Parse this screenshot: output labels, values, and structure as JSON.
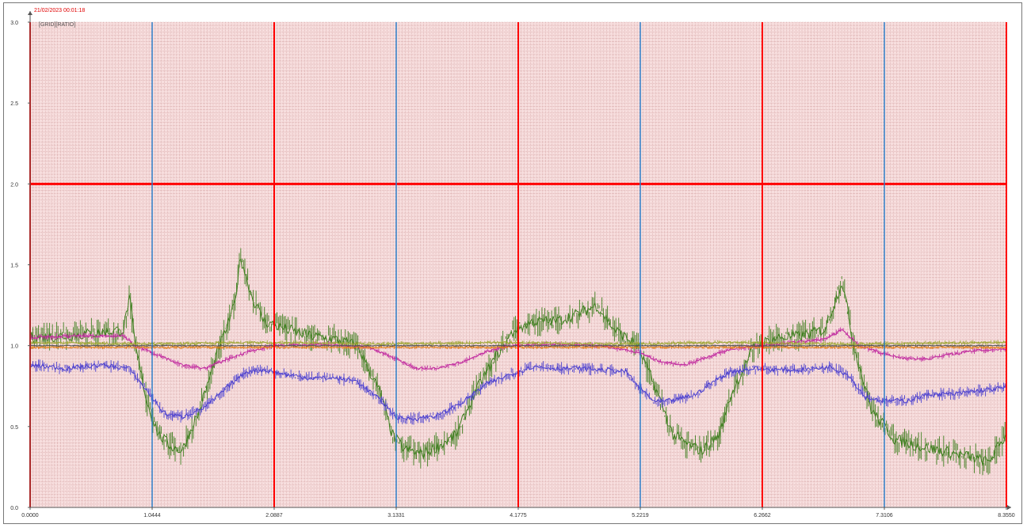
{
  "window": {
    "timestamp": "21/02/2023 00:01:18",
    "subtitle": "[GRID][RATIO]"
  },
  "chart_data": {
    "type": "line",
    "title": "",
    "xlabel": "",
    "ylabel": "",
    "xlim": [
      0,
      8.355
    ],
    "ylim": [
      0,
      3.0
    ],
    "grid": true,
    "legend": "none",
    "x_ticks": [
      "0.0000",
      "1.0444",
      "2.0887",
      "3.1331",
      "4.1775",
      "5.2219",
      "6.2662",
      "7.3106",
      "8.3550"
    ],
    "y_ticks": [
      "0.0",
      "0.5",
      "1.0",
      "1.5",
      "2.0",
      "2.5",
      "3.0"
    ],
    "reference_lines": {
      "horizontal_limit": 2.0,
      "vertical_red": [
        0,
        2.0887,
        4.1775,
        6.2662,
        8.355
      ],
      "vertical_blue": [
        1.0444,
        3.1331,
        5.2219,
        7.3106
      ]
    },
    "series": [
      {
        "color": "#4a3fcf",
        "x": [
          0.0,
          0.3,
          0.6,
          0.85,
          1.0,
          1.15,
          1.3,
          1.5,
          1.7,
          1.85,
          2.0,
          2.2,
          2.4,
          2.6,
          2.8,
          3.0,
          3.15,
          3.3,
          3.5,
          3.7,
          3.9,
          4.1,
          4.3,
          4.5,
          4.7,
          4.9,
          5.1,
          5.2,
          5.35,
          5.5,
          5.7,
          5.85,
          6.0,
          6.2,
          6.4,
          6.6,
          6.85,
          7.0,
          7.15,
          7.3,
          7.5,
          7.7,
          7.9,
          8.1,
          8.355
        ],
        "y": [
          0.88,
          0.86,
          0.88,
          0.86,
          0.72,
          0.58,
          0.56,
          0.62,
          0.75,
          0.84,
          0.85,
          0.82,
          0.8,
          0.8,
          0.78,
          0.66,
          0.55,
          0.55,
          0.57,
          0.65,
          0.76,
          0.82,
          0.87,
          0.86,
          0.86,
          0.85,
          0.84,
          0.75,
          0.65,
          0.66,
          0.7,
          0.78,
          0.84,
          0.86,
          0.85,
          0.85,
          0.87,
          0.82,
          0.68,
          0.66,
          0.66,
          0.7,
          0.7,
          0.72,
          0.74
        ],
        "band": 0.05
      },
      {
        "color": "#3f7f20",
        "x": [
          0.0,
          0.3,
          0.6,
          0.8,
          0.85,
          0.9,
          1.0,
          1.1,
          1.2,
          1.3,
          1.45,
          1.6,
          1.75,
          1.8,
          1.9,
          2.0,
          2.2,
          2.4,
          2.6,
          2.8,
          3.0,
          3.1,
          3.2,
          3.35,
          3.5,
          3.65,
          3.8,
          4.0,
          4.15,
          4.3,
          4.5,
          4.7,
          4.85,
          5.0,
          5.2,
          5.4,
          5.5,
          5.6,
          5.75,
          5.9,
          6.0,
          6.2,
          6.4,
          6.6,
          6.8,
          6.95,
          7.05,
          7.2,
          7.4,
          7.6,
          7.8,
          8.0,
          8.2,
          8.355
        ],
        "y": [
          1.05,
          1.06,
          1.08,
          1.1,
          1.3,
          1.0,
          0.65,
          0.45,
          0.38,
          0.35,
          0.6,
          0.95,
          1.25,
          1.55,
          1.3,
          1.15,
          1.1,
          1.06,
          1.04,
          1.0,
          0.7,
          0.45,
          0.36,
          0.33,
          0.38,
          0.45,
          0.7,
          0.95,
          1.1,
          1.15,
          1.15,
          1.2,
          1.25,
          1.1,
          1.0,
          0.65,
          0.45,
          0.4,
          0.35,
          0.45,
          0.7,
          1.0,
          1.05,
          1.06,
          1.1,
          1.4,
          1.0,
          0.6,
          0.42,
          0.38,
          0.35,
          0.32,
          0.28,
          0.45
        ],
        "band": 0.12
      },
      {
        "color": "#c0289e",
        "x": [
          0.0,
          0.4,
          0.8,
          0.9,
          1.1,
          1.3,
          1.5,
          1.7,
          1.9,
          2.1,
          2.5,
          2.9,
          3.1,
          3.3,
          3.5,
          3.7,
          3.9,
          4.1,
          4.5,
          4.9,
          5.2,
          5.4,
          5.6,
          5.8,
          6.0,
          6.4,
          6.8,
          6.95,
          7.1,
          7.3,
          7.5,
          7.7,
          7.9,
          8.1,
          8.355
        ],
        "y": [
          1.05,
          1.06,
          1.06,
          1.0,
          0.94,
          0.88,
          0.86,
          0.92,
          0.97,
          1.0,
          1.01,
          0.99,
          0.93,
          0.86,
          0.86,
          0.9,
          0.96,
          1.0,
          1.01,
          1.0,
          0.96,
          0.9,
          0.88,
          0.93,
          0.98,
          1.01,
          1.04,
          1.1,
          1.0,
          0.95,
          0.92,
          0.92,
          0.95,
          0.97,
          0.98
        ],
        "band": 0.025
      },
      {
        "color": "#9aa52c",
        "x": [
          0.0,
          1.0,
          2.0,
          3.0,
          4.0,
          5.0,
          6.0,
          7.0,
          8.355
        ],
        "y": [
          1.02,
          1.01,
          1.02,
          1.01,
          1.02,
          1.01,
          1.02,
          1.01,
          1.02
        ],
        "band": 0.02
      },
      {
        "color": "#e07a10",
        "x": [
          0.0,
          1.0,
          2.0,
          3.0,
          4.0,
          5.0,
          6.0,
          7.0,
          8.355
        ],
        "y": [
          0.99,
          0.99,
          0.99,
          0.99,
          0.99,
          0.99,
          0.99,
          0.99,
          0.99
        ],
        "band": 0.015
      },
      {
        "color": "#555555",
        "x": [
          0.0,
          1.0,
          2.0,
          3.0,
          4.0,
          5.0,
          6.0,
          7.0,
          8.355
        ],
        "y": [
          1.0,
          1.0,
          1.0,
          1.0,
          1.0,
          1.0,
          1.0,
          1.0,
          1.0
        ],
        "band": 0.01
      }
    ],
    "colors": {
      "background": "#f7dede",
      "minor_grid": "#c98f8f",
      "reference_red": "#ff0000",
      "reference_blue": "#2e7fc8",
      "timestamp": "#e00000"
    }
  }
}
